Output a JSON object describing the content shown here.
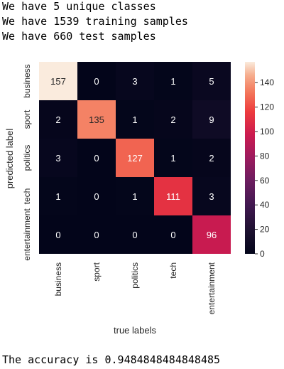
{
  "console": {
    "lines": [
      "We have 5 unique classes",
      "We have 1539 training samples",
      "We have 660 test samples"
    ],
    "accuracy_line": "The accuracy is 0.9484848484848485"
  },
  "chart_data": {
    "type": "heatmap",
    "x_categories": [
      "business",
      "sport",
      "politics",
      "tech",
      "entertainment"
    ],
    "y_categories": [
      "business",
      "sport",
      "politics",
      "tech",
      "entertainment"
    ],
    "values": [
      [
        157,
        0,
        3,
        1,
        5
      ],
      [
        2,
        135,
        1,
        2,
        9
      ],
      [
        3,
        0,
        127,
        1,
        2
      ],
      [
        1,
        0,
        1,
        111,
        3
      ],
      [
        0,
        0,
        0,
        0,
        96
      ]
    ],
    "xlabel": "true labels",
    "ylabel": "predicted label",
    "colorbar": {
      "range": [
        0,
        157
      ],
      "ticks": [
        0,
        20,
        40,
        60,
        80,
        100,
        120,
        140
      ]
    },
    "colormap": "rocket"
  }
}
